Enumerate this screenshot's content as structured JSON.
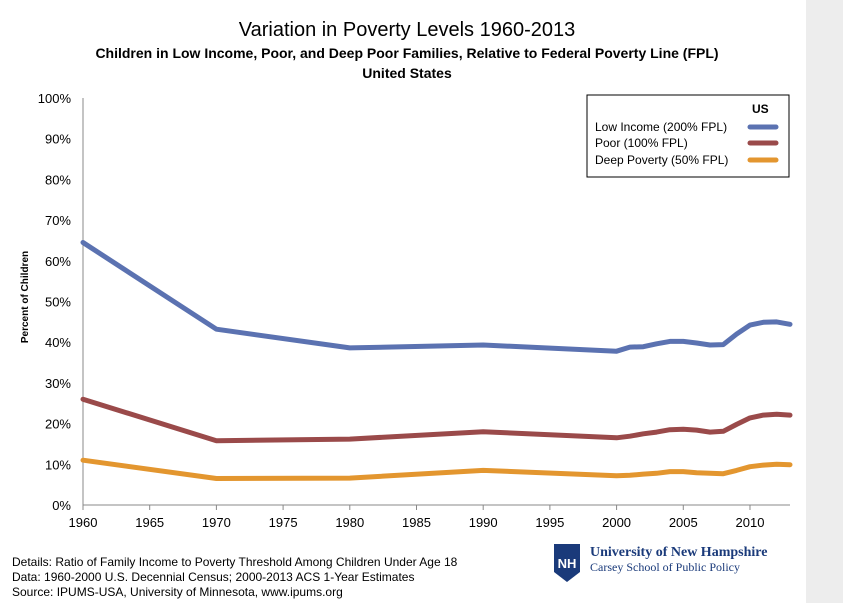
{
  "chart_data": {
    "type": "line",
    "title": "Variation in Poverty Levels 1960-2013",
    "subtitle": "Children in Low Income, Poor, and Deep Poor Families, Relative to Federal Poverty Line (FPL)",
    "subtitle2": "United States",
    "xlabel": "",
    "ylabel": "Percent of Children",
    "xlim": [
      1960,
      2013
    ],
    "ylim": [
      0,
      100
    ],
    "x_ticks": [
      "1960",
      "1965",
      "1970",
      "1975",
      "1980",
      "1985",
      "1990",
      "1995",
      "2000",
      "2005",
      "2010"
    ],
    "y_ticks": [
      "0%",
      "10%",
      "20%",
      "30%",
      "40%",
      "50%",
      "60%",
      "70%",
      "80%",
      "90%",
      "100%"
    ],
    "grid": false,
    "legend": {
      "title": "US",
      "placement": "top-right"
    },
    "x": [
      1960,
      1970,
      1980,
      1990,
      2000,
      2001,
      2002,
      2003,
      2004,
      2005,
      2006,
      2007,
      2008,
      2009,
      2010,
      2011,
      2012,
      2013
    ],
    "series": [
      {
        "name": "Low Income (200% FPL)",
        "color": "#5b72b1",
        "values": [
          64.5,
          43.2,
          38.6,
          39.3,
          37.8,
          38.8,
          38.9,
          39.6,
          40.2,
          40.2,
          39.8,
          39.3,
          39.4,
          42.0,
          44.2,
          44.9,
          45.0,
          44.4
        ]
      },
      {
        "name": "Poor (100% FPL)",
        "color": "#9a4a4a",
        "values": [
          26.0,
          15.8,
          16.2,
          18.0,
          16.5,
          16.9,
          17.5,
          17.9,
          18.5,
          18.6,
          18.4,
          17.9,
          18.1,
          19.8,
          21.4,
          22.1,
          22.3,
          22.1
        ]
      },
      {
        "name": "Deep Poverty (50% FPL)",
        "color": "#e3962f",
        "values": [
          11.0,
          6.5,
          6.6,
          8.5,
          7.2,
          7.3,
          7.6,
          7.8,
          8.2,
          8.2,
          7.9,
          7.8,
          7.7,
          8.5,
          9.4,
          9.8,
          10.0,
          9.9
        ]
      }
    ]
  },
  "footer": {
    "line1": "Details: Ratio of Family Income to Poverty Threshold Among Children Under Age 18",
    "line2": "Data: 1960-2000 U.S. Decennial Census; 2000-2013 ACS 1-Year Estimates",
    "line3": "Source: IPUMS-USA,  University of Minnesota, www.ipums.org"
  },
  "logo": {
    "monogram": "NH",
    "name": "University of New Hampshire",
    "school": "Carsey School of Public Policy",
    "color": "#1a3a7a"
  }
}
